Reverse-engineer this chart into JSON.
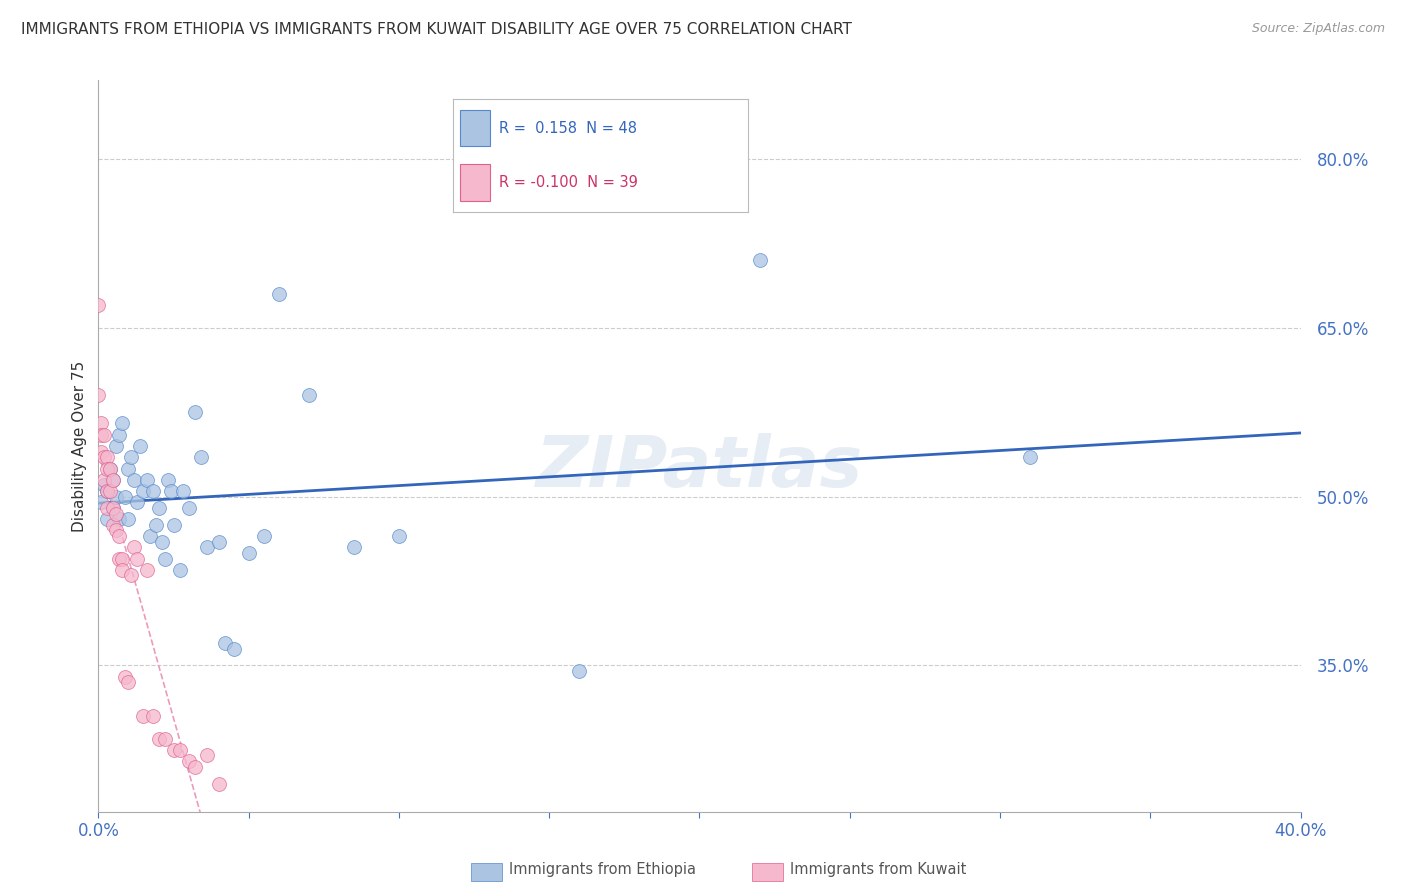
{
  "title": "IMMIGRANTS FROM ETHIOPIA VS IMMIGRANTS FROM KUWAIT DISABILITY AGE OVER 75 CORRELATION CHART",
  "source": "Source: ZipAtlas.com",
  "ylabel": "Disability Age Over 75",
  "x_min": 0.0,
  "x_max": 0.4,
  "y_min": 0.22,
  "y_max": 0.87,
  "right_yticks": [
    0.8,
    0.65,
    0.5,
    0.35
  ],
  "right_yticklabels": [
    "80.0%",
    "65.0%",
    "50.0%",
    "35.0%"
  ],
  "bottom_xticks": [
    0.0,
    0.05,
    0.1,
    0.15,
    0.2,
    0.25,
    0.3,
    0.35,
    0.4
  ],
  "ethiopia_color": "#aac4e2",
  "ethiopia_edge": "#5588cc",
  "kuwait_color": "#f5b8cc",
  "kuwait_edge": "#e06090",
  "trendline_ethiopia_color": "#3366bb",
  "trendline_kuwait_color": "#ee99bb",
  "watermark": "ZIPatlas",
  "ethiopia_x": [
    0.001,
    0.002,
    0.003,
    0.003,
    0.004,
    0.005,
    0.005,
    0.006,
    0.006,
    0.007,
    0.007,
    0.008,
    0.009,
    0.01,
    0.01,
    0.011,
    0.012,
    0.013,
    0.014,
    0.015,
    0.016,
    0.017,
    0.018,
    0.019,
    0.02,
    0.021,
    0.022,
    0.023,
    0.024,
    0.025,
    0.027,
    0.028,
    0.03,
    0.032,
    0.034,
    0.036,
    0.04,
    0.042,
    0.045,
    0.05,
    0.055,
    0.06,
    0.07,
    0.085,
    0.1,
    0.16,
    0.22,
    0.31
  ],
  "ethiopia_y": [
    0.495,
    0.51,
    0.505,
    0.48,
    0.525,
    0.515,
    0.49,
    0.545,
    0.5,
    0.555,
    0.48,
    0.565,
    0.5,
    0.525,
    0.48,
    0.535,
    0.515,
    0.495,
    0.545,
    0.505,
    0.515,
    0.465,
    0.505,
    0.475,
    0.49,
    0.46,
    0.445,
    0.515,
    0.505,
    0.475,
    0.435,
    0.505,
    0.49,
    0.575,
    0.535,
    0.455,
    0.46,
    0.37,
    0.365,
    0.45,
    0.465,
    0.68,
    0.59,
    0.455,
    0.465,
    0.345,
    0.71,
    0.535
  ],
  "kuwait_x": [
    0.0,
    0.0,
    0.001,
    0.001,
    0.001,
    0.002,
    0.002,
    0.002,
    0.003,
    0.003,
    0.003,
    0.003,
    0.004,
    0.004,
    0.005,
    0.005,
    0.005,
    0.006,
    0.006,
    0.007,
    0.007,
    0.008,
    0.008,
    0.009,
    0.01,
    0.011,
    0.012,
    0.013,
    0.015,
    0.016,
    0.018,
    0.02,
    0.022,
    0.025,
    0.027,
    0.03,
    0.032,
    0.036,
    0.04
  ],
  "kuwait_y": [
    0.67,
    0.59,
    0.565,
    0.555,
    0.54,
    0.555,
    0.535,
    0.515,
    0.535,
    0.525,
    0.505,
    0.49,
    0.525,
    0.505,
    0.515,
    0.49,
    0.475,
    0.485,
    0.47,
    0.465,
    0.445,
    0.445,
    0.435,
    0.34,
    0.335,
    0.43,
    0.455,
    0.445,
    0.305,
    0.435,
    0.305,
    0.285,
    0.285,
    0.275,
    0.275,
    0.265,
    0.26,
    0.27,
    0.245
  ]
}
